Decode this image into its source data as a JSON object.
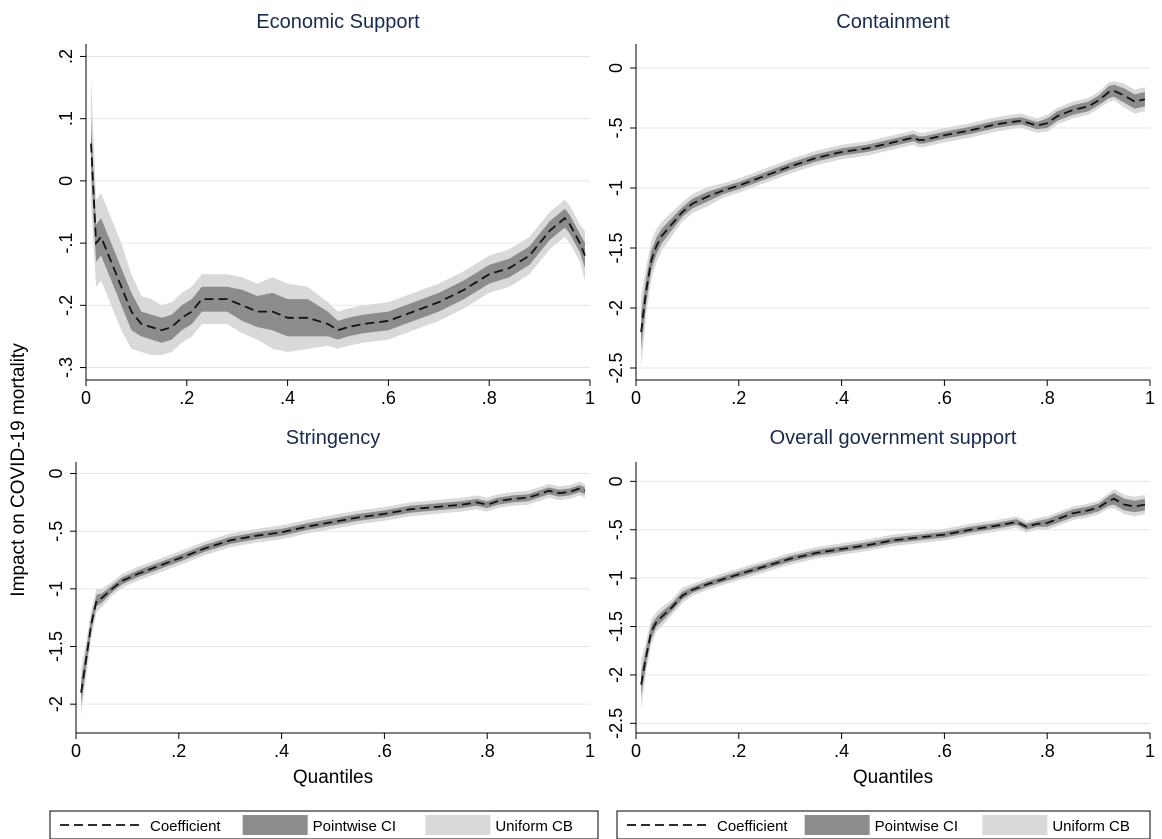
{
  "figure": {
    "ylabel": "Impact on COVID-19 mortality",
    "xlabel": "Quantiles"
  },
  "legend": {
    "items": [
      {
        "label": "Coefficient",
        "kind": "dashed-line"
      },
      {
        "label": "Pointwise CI",
        "kind": "dark-band"
      },
      {
        "label": "Uniform CB",
        "kind": "light-band"
      }
    ]
  },
  "colors": {
    "coefficient": "#111111",
    "pointwise_ci": "#8c8c8c",
    "uniform_cb": "#d9d9d9",
    "title": "#1a2a4d"
  },
  "chart_data": [
    {
      "type": "line",
      "title": "Economic Support",
      "xlabel": "",
      "xlim": [
        0,
        1
      ],
      "ylim": [
        -0.32,
        0.22
      ],
      "xticks": [
        0,
        0.2,
        0.4,
        0.6,
        0.8,
        1
      ],
      "xtick_labels": [
        "0",
        ".2",
        ".4",
        ".6",
        ".8",
        "1"
      ],
      "yticks": [
        0.2,
        0.1,
        0,
        -0.1,
        -0.2,
        -0.3
      ],
      "ytick_labels": [
        ".2",
        ".1",
        "0",
        "-.1",
        "-.2",
        "-.3"
      ],
      "x": [
        0.01,
        0.02,
        0.03,
        0.05,
        0.07,
        0.09,
        0.11,
        0.13,
        0.15,
        0.17,
        0.19,
        0.21,
        0.23,
        0.25,
        0.28,
        0.31,
        0.34,
        0.37,
        0.4,
        0.44,
        0.48,
        0.5,
        0.52,
        0.55,
        0.6,
        0.65,
        0.7,
        0.75,
        0.8,
        0.84,
        0.88,
        0.92,
        0.95,
        0.96,
        0.98,
        0.99
      ],
      "series": [
        {
          "values": [
            0.06,
            -0.1,
            -0.09,
            -0.13,
            -0.17,
            -0.21,
            -0.23,
            -0.235,
            -0.24,
            -0.235,
            -0.22,
            -0.21,
            -0.19,
            -0.19,
            -0.19,
            -0.2,
            -0.21,
            -0.21,
            -0.22,
            -0.22,
            -0.23,
            -0.24,
            -0.235,
            -0.23,
            -0.225,
            -0.21,
            -0.195,
            -0.175,
            -0.15,
            -0.14,
            -0.12,
            -0.08,
            -0.06,
            -0.07,
            -0.1,
            -0.12
          ]
        }
      ],
      "pointwise_ci": {
        "lower": [
          0.02,
          -0.13,
          -0.12,
          -0.16,
          -0.2,
          -0.24,
          -0.25,
          -0.255,
          -0.26,
          -0.255,
          -0.24,
          -0.23,
          -0.21,
          -0.21,
          -0.21,
          -0.225,
          -0.235,
          -0.24,
          -0.25,
          -0.25,
          -0.25,
          -0.255,
          -0.25,
          -0.245,
          -0.24,
          -0.225,
          -0.21,
          -0.19,
          -0.165,
          -0.155,
          -0.135,
          -0.095,
          -0.075,
          -0.085,
          -0.115,
          -0.14
        ],
        "upper": [
          0.1,
          -0.07,
          -0.06,
          -0.1,
          -0.14,
          -0.18,
          -0.21,
          -0.215,
          -0.22,
          -0.215,
          -0.2,
          -0.19,
          -0.17,
          -0.17,
          -0.17,
          -0.175,
          -0.185,
          -0.18,
          -0.19,
          -0.19,
          -0.21,
          -0.225,
          -0.22,
          -0.215,
          -0.21,
          -0.195,
          -0.18,
          -0.16,
          -0.135,
          -0.125,
          -0.105,
          -0.065,
          -0.045,
          -0.055,
          -0.085,
          -0.1
        ]
      },
      "uniform_cb": {
        "lower": [
          -0.04,
          -0.17,
          -0.16,
          -0.2,
          -0.24,
          -0.27,
          -0.275,
          -0.28,
          -0.28,
          -0.275,
          -0.26,
          -0.25,
          -0.23,
          -0.23,
          -0.23,
          -0.245,
          -0.255,
          -0.27,
          -0.275,
          -0.27,
          -0.265,
          -0.27,
          -0.265,
          -0.26,
          -0.255,
          -0.24,
          -0.225,
          -0.205,
          -0.18,
          -0.17,
          -0.15,
          -0.11,
          -0.09,
          -0.1,
          -0.13,
          -0.16
        ],
        "upper": [
          0.17,
          -0.03,
          -0.02,
          -0.06,
          -0.1,
          -0.15,
          -0.185,
          -0.19,
          -0.2,
          -0.195,
          -0.18,
          -0.17,
          -0.15,
          -0.15,
          -0.15,
          -0.155,
          -0.165,
          -0.155,
          -0.165,
          -0.17,
          -0.195,
          -0.21,
          -0.205,
          -0.2,
          -0.195,
          -0.18,
          -0.165,
          -0.145,
          -0.12,
          -0.11,
          -0.09,
          -0.05,
          -0.03,
          -0.04,
          -0.07,
          -0.08
        ]
      }
    },
    {
      "type": "line",
      "title": "Containment",
      "xlabel": "",
      "xlim": [
        0,
        1
      ],
      "ylim": [
        -2.6,
        0.2
      ],
      "xticks": [
        0,
        0.2,
        0.4,
        0.6,
        0.8,
        1
      ],
      "xtick_labels": [
        "0",
        ".2",
        ".4",
        ".6",
        ".8",
        "1"
      ],
      "yticks": [
        0,
        -0.5,
        -1,
        -1.5,
        -2,
        -2.5
      ],
      "ytick_labels": [
        "0",
        "-.5",
        "-1",
        "-1.5",
        "-2",
        "-2.5"
      ],
      "x": [
        0.01,
        0.02,
        0.03,
        0.04,
        0.05,
        0.07,
        0.09,
        0.11,
        0.14,
        0.17,
        0.2,
        0.25,
        0.3,
        0.35,
        0.4,
        0.45,
        0.5,
        0.54,
        0.55,
        0.56,
        0.6,
        0.65,
        0.7,
        0.73,
        0.75,
        0.78,
        0.8,
        0.82,
        0.85,
        0.88,
        0.9,
        0.92,
        0.93,
        0.95,
        0.97,
        0.99
      ],
      "series": [
        {
          "values": [
            -2.2,
            -1.85,
            -1.6,
            -1.48,
            -1.4,
            -1.3,
            -1.2,
            -1.13,
            -1.07,
            -1.02,
            -0.98,
            -0.9,
            -0.82,
            -0.75,
            -0.7,
            -0.67,
            -0.62,
            -0.58,
            -0.6,
            -0.6,
            -0.56,
            -0.52,
            -0.47,
            -0.45,
            -0.44,
            -0.48,
            -0.46,
            -0.4,
            -0.35,
            -0.32,
            -0.27,
            -0.2,
            -0.19,
            -0.23,
            -0.28,
            -0.26
          ]
        }
      ],
      "pointwise_ci": {
        "lower": [
          -2.35,
          -1.95,
          -1.68,
          -1.55,
          -1.46,
          -1.35,
          -1.24,
          -1.17,
          -1.11,
          -1.05,
          -1.01,
          -0.93,
          -0.85,
          -0.78,
          -0.73,
          -0.7,
          -0.65,
          -0.61,
          -0.63,
          -0.63,
          -0.59,
          -0.55,
          -0.5,
          -0.48,
          -0.47,
          -0.51,
          -0.5,
          -0.44,
          -0.39,
          -0.36,
          -0.31,
          -0.25,
          -0.24,
          -0.29,
          -0.34,
          -0.32
        ],
        "upper": [
          -2.05,
          -1.75,
          -1.52,
          -1.41,
          -1.34,
          -1.25,
          -1.16,
          -1.09,
          -1.03,
          -0.99,
          -0.95,
          -0.87,
          -0.79,
          -0.72,
          -0.67,
          -0.64,
          -0.59,
          -0.55,
          -0.57,
          -0.57,
          -0.53,
          -0.49,
          -0.44,
          -0.42,
          -0.41,
          -0.45,
          -0.42,
          -0.36,
          -0.31,
          -0.28,
          -0.23,
          -0.15,
          -0.14,
          -0.17,
          -0.22,
          -0.2
        ]
      },
      "uniform_cb": {
        "lower": [
          -2.5,
          -2.05,
          -1.76,
          -1.62,
          -1.52,
          -1.4,
          -1.28,
          -1.21,
          -1.15,
          -1.08,
          -1.04,
          -0.96,
          -0.88,
          -0.81,
          -0.76,
          -0.73,
          -0.68,
          -0.64,
          -0.66,
          -0.66,
          -0.62,
          -0.58,
          -0.53,
          -0.51,
          -0.5,
          -0.54,
          -0.53,
          -0.47,
          -0.42,
          -0.39,
          -0.34,
          -0.28,
          -0.27,
          -0.33,
          -0.38,
          -0.36
        ],
        "upper": [
          -1.9,
          -1.65,
          -1.44,
          -1.34,
          -1.28,
          -1.2,
          -1.12,
          -1.05,
          -0.99,
          -0.96,
          -0.92,
          -0.84,
          -0.76,
          -0.69,
          -0.64,
          -0.61,
          -0.56,
          -0.52,
          -0.54,
          -0.54,
          -0.5,
          -0.46,
          -0.41,
          -0.39,
          -0.38,
          -0.42,
          -0.39,
          -0.33,
          -0.28,
          -0.25,
          -0.2,
          -0.12,
          -0.11,
          -0.13,
          -0.18,
          -0.16
        ]
      }
    },
    {
      "type": "line",
      "title": "Stringency",
      "xlabel": "Quantiles",
      "xlim": [
        0,
        1
      ],
      "ylim": [
        -2.25,
        0.1
      ],
      "xticks": [
        0,
        0.2,
        0.4,
        0.6,
        0.8,
        1
      ],
      "xtick_labels": [
        "0",
        ".2",
        ".4",
        ".6",
        ".8",
        "1"
      ],
      "yticks": [
        0,
        -0.5,
        -1,
        -1.5,
        -2
      ],
      "ytick_labels": [
        "0",
        "-.5",
        "-1",
        "-1.5",
        "-2"
      ],
      "x": [
        0.01,
        0.02,
        0.03,
        0.04,
        0.05,
        0.07,
        0.09,
        0.12,
        0.15,
        0.18,
        0.21,
        0.25,
        0.3,
        0.35,
        0.4,
        0.45,
        0.5,
        0.55,
        0.6,
        0.65,
        0.7,
        0.75,
        0.78,
        0.8,
        0.82,
        0.85,
        0.88,
        0.9,
        0.92,
        0.94,
        0.96,
        0.98,
        0.99
      ],
      "series": [
        {
          "values": [
            -1.9,
            -1.6,
            -1.3,
            -1.1,
            -1.08,
            -1.0,
            -0.93,
            -0.87,
            -0.82,
            -0.77,
            -0.72,
            -0.65,
            -0.58,
            -0.54,
            -0.51,
            -0.46,
            -0.42,
            -0.38,
            -0.35,
            -0.31,
            -0.29,
            -0.27,
            -0.25,
            -0.27,
            -0.24,
            -0.22,
            -0.21,
            -0.18,
            -0.15,
            -0.17,
            -0.16,
            -0.13,
            -0.15
          ]
        }
      ],
      "pointwise_ci": {
        "lower": [
          -2.0,
          -1.68,
          -1.36,
          -1.15,
          -1.12,
          -1.03,
          -0.96,
          -0.9,
          -0.85,
          -0.8,
          -0.75,
          -0.68,
          -0.61,
          -0.57,
          -0.54,
          -0.49,
          -0.45,
          -0.41,
          -0.38,
          -0.34,
          -0.32,
          -0.3,
          -0.28,
          -0.3,
          -0.27,
          -0.25,
          -0.24,
          -0.21,
          -0.18,
          -0.2,
          -0.19,
          -0.16,
          -0.18
        ],
        "upper": [
          -1.8,
          -1.52,
          -1.24,
          -1.05,
          -1.04,
          -0.97,
          -0.9,
          -0.84,
          -0.79,
          -0.74,
          -0.69,
          -0.62,
          -0.55,
          -0.51,
          -0.48,
          -0.43,
          -0.39,
          -0.35,
          -0.32,
          -0.28,
          -0.26,
          -0.24,
          -0.22,
          -0.24,
          -0.21,
          -0.19,
          -0.18,
          -0.15,
          -0.12,
          -0.14,
          -0.13,
          -0.1,
          -0.12
        ]
      },
      "uniform_cb": {
        "lower": [
          -2.1,
          -1.75,
          -1.42,
          -1.2,
          -1.16,
          -1.06,
          -0.99,
          -0.93,
          -0.88,
          -0.83,
          -0.78,
          -0.71,
          -0.64,
          -0.6,
          -0.57,
          -0.52,
          -0.48,
          -0.44,
          -0.41,
          -0.37,
          -0.35,
          -0.33,
          -0.31,
          -0.33,
          -0.3,
          -0.28,
          -0.27,
          -0.24,
          -0.21,
          -0.23,
          -0.22,
          -0.19,
          -0.21
        ],
        "upper": [
          -1.7,
          -1.45,
          -1.18,
          -1.0,
          -1.0,
          -0.94,
          -0.87,
          -0.81,
          -0.76,
          -0.71,
          -0.66,
          -0.59,
          -0.52,
          -0.48,
          -0.45,
          -0.4,
          -0.36,
          -0.32,
          -0.29,
          -0.25,
          -0.23,
          -0.21,
          -0.19,
          -0.21,
          -0.18,
          -0.16,
          -0.15,
          -0.12,
          -0.09,
          -0.11,
          -0.1,
          -0.07,
          -0.09
        ]
      }
    },
    {
      "type": "line",
      "title": "Overall government support",
      "xlabel": "Quantiles",
      "xlim": [
        0,
        1
      ],
      "ylim": [
        -2.6,
        0.2
      ],
      "xticks": [
        0,
        0.2,
        0.4,
        0.6,
        0.8,
        1
      ],
      "xtick_labels": [
        "0",
        ".2",
        ".4",
        ".6",
        ".8",
        "1"
      ],
      "yticks": [
        0,
        -0.5,
        -1,
        -1.5,
        -2,
        -2.5
      ],
      "ytick_labels": [
        "0",
        "-.5",
        "-1",
        "-1.5",
        "-2",
        "-2.5"
      ],
      "x": [
        0.01,
        0.02,
        0.03,
        0.04,
        0.05,
        0.07,
        0.09,
        0.11,
        0.14,
        0.17,
        0.2,
        0.25,
        0.3,
        0.35,
        0.4,
        0.45,
        0.5,
        0.55,
        0.6,
        0.65,
        0.7,
        0.74,
        0.76,
        0.78,
        0.8,
        0.83,
        0.85,
        0.88,
        0.9,
        0.92,
        0.93,
        0.95,
        0.97,
        0.99
      ],
      "series": [
        {
          "values": [
            -2.1,
            -1.8,
            -1.55,
            -1.45,
            -1.4,
            -1.3,
            -1.18,
            -1.12,
            -1.06,
            -1.01,
            -0.96,
            -0.88,
            -0.8,
            -0.74,
            -0.7,
            -0.66,
            -0.61,
            -0.58,
            -0.55,
            -0.5,
            -0.46,
            -0.42,
            -0.47,
            -0.44,
            -0.43,
            -0.37,
            -0.33,
            -0.3,
            -0.27,
            -0.2,
            -0.18,
            -0.24,
            -0.26,
            -0.24
          ]
        }
      ],
      "pointwise_ci": {
        "lower": [
          -2.22,
          -1.88,
          -1.62,
          -1.5,
          -1.45,
          -1.34,
          -1.22,
          -1.15,
          -1.09,
          -1.04,
          -0.99,
          -0.91,
          -0.83,
          -0.77,
          -0.73,
          -0.69,
          -0.64,
          -0.61,
          -0.58,
          -0.53,
          -0.49,
          -0.45,
          -0.5,
          -0.47,
          -0.47,
          -0.41,
          -0.37,
          -0.34,
          -0.31,
          -0.25,
          -0.24,
          -0.3,
          -0.32,
          -0.3
        ],
        "upper": [
          -1.98,
          -1.72,
          -1.48,
          -1.4,
          -1.35,
          -1.26,
          -1.14,
          -1.09,
          -1.03,
          -0.98,
          -0.93,
          -0.85,
          -0.77,
          -0.71,
          -0.67,
          -0.63,
          -0.58,
          -0.55,
          -0.52,
          -0.47,
          -0.43,
          -0.39,
          -0.44,
          -0.41,
          -0.39,
          -0.33,
          -0.29,
          -0.26,
          -0.23,
          -0.15,
          -0.12,
          -0.18,
          -0.2,
          -0.18
        ]
      },
      "uniform_cb": {
        "lower": [
          -2.35,
          -1.96,
          -1.68,
          -1.55,
          -1.5,
          -1.38,
          -1.26,
          -1.18,
          -1.12,
          -1.07,
          -1.02,
          -0.94,
          -0.86,
          -0.8,
          -0.76,
          -0.72,
          -0.67,
          -0.64,
          -0.61,
          -0.56,
          -0.52,
          -0.48,
          -0.53,
          -0.5,
          -0.5,
          -0.44,
          -0.4,
          -0.37,
          -0.34,
          -0.28,
          -0.28,
          -0.34,
          -0.36,
          -0.34
        ],
        "upper": [
          -1.85,
          -1.64,
          -1.42,
          -1.35,
          -1.3,
          -1.22,
          -1.1,
          -1.06,
          -1.0,
          -0.95,
          -0.9,
          -0.82,
          -0.74,
          -0.68,
          -0.64,
          -0.6,
          -0.55,
          -0.52,
          -0.49,
          -0.44,
          -0.4,
          -0.36,
          -0.41,
          -0.38,
          -0.36,
          -0.3,
          -0.26,
          -0.23,
          -0.2,
          -0.12,
          -0.08,
          -0.14,
          -0.16,
          -0.14
        ]
      }
    }
  ]
}
